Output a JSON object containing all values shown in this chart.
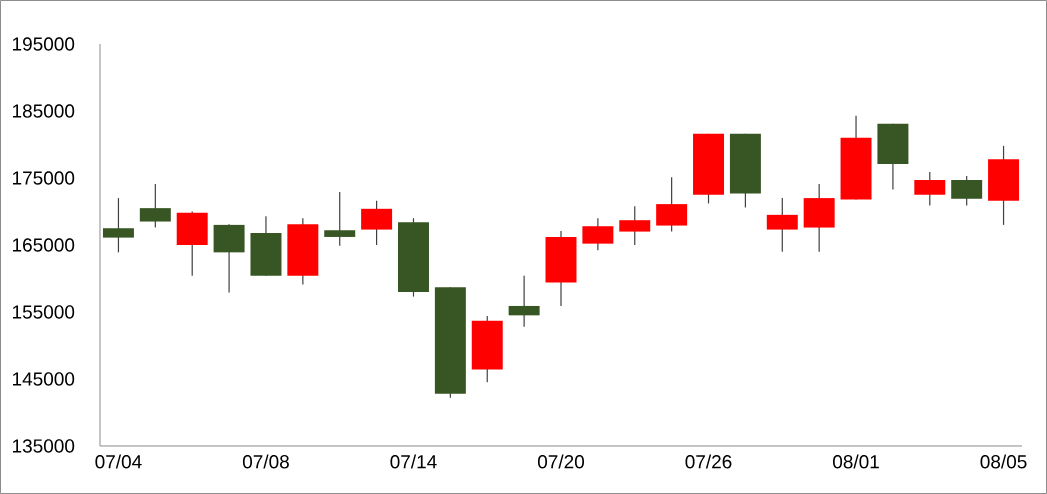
{
  "chart_data": {
    "type": "candlestick",
    "categories": [
      "07/04",
      null,
      null,
      null,
      "07/08",
      null,
      null,
      null,
      "07/14",
      null,
      null,
      null,
      "07/20",
      null,
      null,
      null,
      "07/26",
      null,
      null,
      null,
      "08/01",
      null,
      null,
      null,
      "08/05"
    ],
    "ohlc": [
      [
        167500,
        172000,
        163900,
        166100
      ],
      [
        170500,
        174100,
        167600,
        168500
      ],
      [
        165000,
        170000,
        160400,
        169800
      ],
      [
        168000,
        168100,
        157900,
        163900
      ],
      [
        166800,
        169300,
        160400,
        160400
      ],
      [
        160400,
        169000,
        159100,
        168100
      ],
      [
        167200,
        172900,
        164900,
        166200
      ],
      [
        167300,
        171600,
        165000,
        170400
      ],
      [
        168400,
        169000,
        157300,
        158000
      ],
      [
        158700,
        158700,
        142200,
        142800
      ],
      [
        146400,
        154400,
        144500,
        153700
      ],
      [
        155900,
        160400,
        152800,
        154500
      ],
      [
        159400,
        167100,
        155900,
        166200
      ],
      [
        165200,
        169000,
        164200,
        167800
      ],
      [
        167000,
        170800,
        165000,
        168700
      ],
      [
        167900,
        175100,
        167000,
        171100
      ],
      [
        172500,
        181600,
        171200,
        181600
      ],
      [
        181600,
        181600,
        170600,
        172700
      ],
      [
        167300,
        172000,
        164000,
        169500
      ],
      [
        167600,
        174100,
        164000,
        172000
      ],
      [
        171800,
        184300,
        171800,
        181000
      ],
      [
        183100,
        183100,
        173300,
        177100
      ],
      [
        172500,
        175900,
        170900,
        174700
      ],
      [
        174700,
        175300,
        170900,
        171900
      ],
      [
        171600,
        179800,
        168000,
        177800
      ]
    ],
    "colors": [
      "#375623",
      "#375623",
      "#ff0000",
      "#375623",
      "#375623",
      "#ff0000",
      "#375623",
      "#ff0000",
      "#375623",
      "#375623",
      "#ff0000",
      "#375623",
      "#ff0000",
      "#ff0000",
      "#ff0000",
      "#ff0000",
      "#ff0000",
      "#375623",
      "#ff0000",
      "#ff0000",
      "#ff0000",
      "#375623",
      "#ff0000",
      "#375623",
      "#ff0000"
    ],
    "ylim": [
      135000,
      195000
    ],
    "yticks": [
      135000,
      145000,
      155000,
      165000,
      175000,
      185000,
      195000
    ]
  }
}
